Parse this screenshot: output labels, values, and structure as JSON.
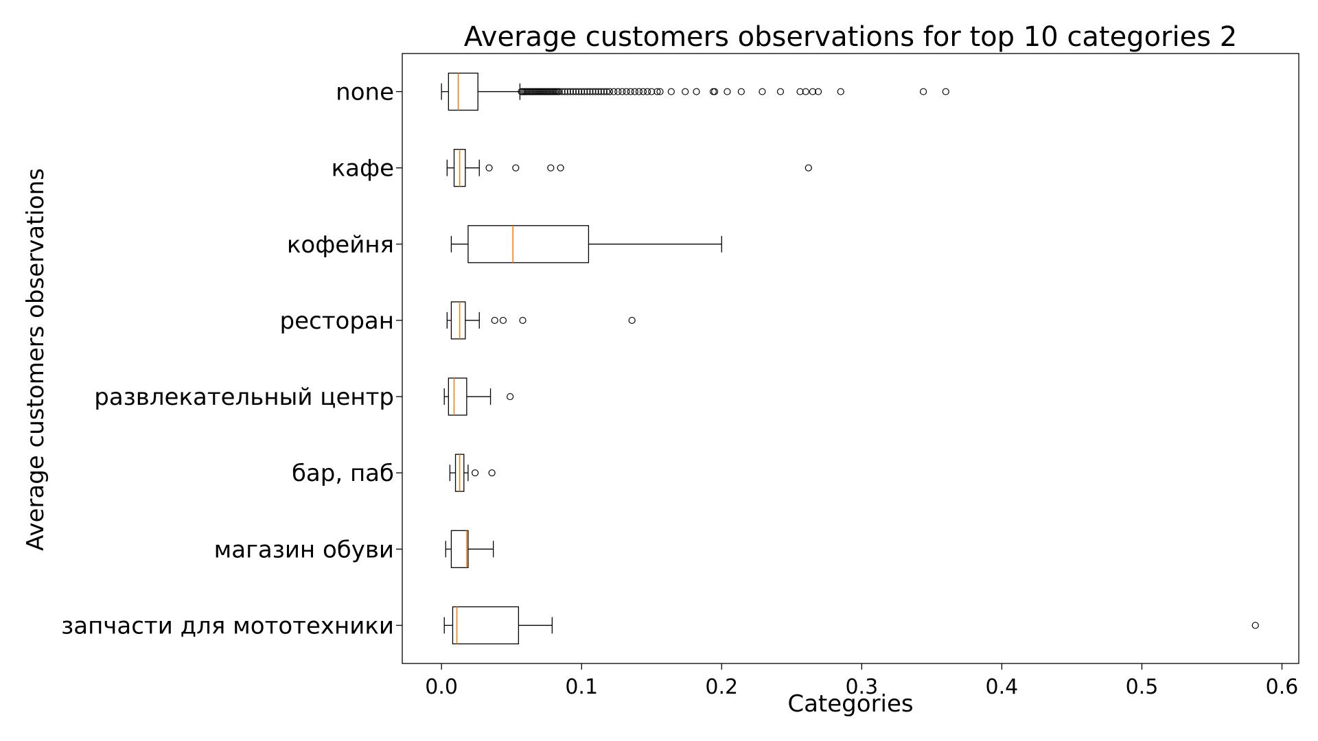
{
  "chart_data": {
    "type": "boxplot",
    "orientation": "horizontal",
    "title": "Average customers observations for top 10 categories 2",
    "xlabel": "Categories",
    "ylabel": "Average customers observations",
    "xlim": [
      -0.028,
      0.612
    ],
    "xticks": [
      0.0,
      0.1,
      0.2,
      0.3,
      0.4,
      0.5,
      0.6
    ],
    "xtick_labels": [
      "0.0",
      "0.1",
      "0.2",
      "0.3",
      "0.4",
      "0.5",
      "0.6"
    ],
    "grid": false,
    "colors": {
      "box": "#000000",
      "median": "#ff7f0e",
      "flier": "#000000"
    },
    "boxes": [
      {
        "label": "none",
        "whisker_low": 0.0,
        "q1": 0.005,
        "median": 0.012,
        "q3": 0.026,
        "whisker_high": 0.056,
        "fliers": [
          0.057,
          0.058,
          0.059,
          0.06,
          0.061,
          0.062,
          0.063,
          0.064,
          0.065,
          0.066,
          0.067,
          0.068,
          0.069,
          0.07,
          0.071,
          0.072,
          0.073,
          0.074,
          0.075,
          0.076,
          0.077,
          0.078,
          0.079,
          0.08,
          0.081,
          0.082,
          0.083,
          0.084,
          0.086,
          0.088,
          0.09,
          0.092,
          0.094,
          0.096,
          0.098,
          0.1,
          0.102,
          0.104,
          0.106,
          0.108,
          0.11,
          0.112,
          0.114,
          0.116,
          0.118,
          0.12,
          0.123,
          0.126,
          0.129,
          0.132,
          0.135,
          0.138,
          0.141,
          0.144,
          0.147,
          0.15,
          0.154,
          0.156,
          0.164,
          0.174,
          0.182,
          0.194,
          0.195,
          0.204,
          0.214,
          0.229,
          0.242,
          0.256,
          0.26,
          0.265,
          0.269,
          0.285,
          0.344,
          0.36
        ]
      },
      {
        "label": "кафе",
        "whisker_low": 0.004,
        "q1": 0.009,
        "median": 0.013,
        "q3": 0.017,
        "whisker_high": 0.027,
        "fliers": [
          0.034,
          0.053,
          0.078,
          0.085,
          0.262
        ]
      },
      {
        "label": "кофейня",
        "whisker_low": 0.007,
        "q1": 0.019,
        "median": 0.051,
        "q3": 0.105,
        "whisker_high": 0.2,
        "fliers": []
      },
      {
        "label": "ресторан",
        "whisker_low": 0.004,
        "q1": 0.007,
        "median": 0.013,
        "q3": 0.017,
        "whisker_high": 0.027,
        "fliers": [
          0.038,
          0.044,
          0.058,
          0.136
        ]
      },
      {
        "label": "развлекательный центр",
        "whisker_low": 0.002,
        "q1": 0.005,
        "median": 0.009,
        "q3": 0.018,
        "whisker_high": 0.035,
        "fliers": [
          0.049
        ]
      },
      {
        "label": "бар, паб",
        "whisker_low": 0.006,
        "q1": 0.01,
        "median": 0.013,
        "q3": 0.016,
        "whisker_high": 0.019,
        "fliers": [
          0.024,
          0.036
        ]
      },
      {
        "label": "магазин обуви",
        "whisker_low": 0.003,
        "q1": 0.007,
        "median": 0.018,
        "q3": 0.019,
        "whisker_high": 0.037,
        "fliers": []
      },
      {
        "label": "запчасти для мототехники",
        "whisker_low": 0.002,
        "q1": 0.008,
        "median": 0.011,
        "q3": 0.055,
        "whisker_high": 0.079,
        "fliers": [
          0.581
        ]
      }
    ]
  }
}
